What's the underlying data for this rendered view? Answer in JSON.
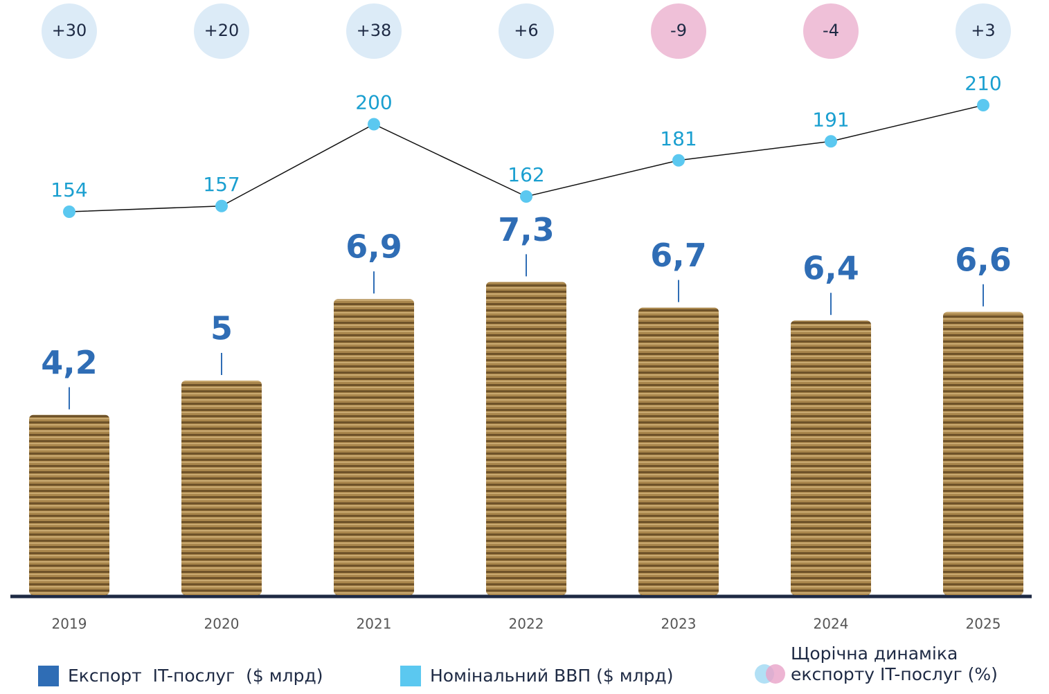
{
  "chart_data": {
    "type": "bar",
    "categories": [
      "2019",
      "2020",
      "2021",
      "2022",
      "2023",
      "2024",
      "2025"
    ],
    "series": [
      {
        "name": "Експорт  IT-послуг  ($ млрд)",
        "type": "bar",
        "color": "#2f6db5",
        "values": [
          4.2,
          5,
          6.9,
          7.3,
          6.7,
          6.4,
          6.6
        ],
        "value_labels": [
          "4,2",
          "5",
          "6,9",
          "7,3",
          "6,7",
          "6,4",
          "6,6"
        ]
      },
      {
        "name": "Номінальний ВВП ($ млрд)",
        "type": "line",
        "color": "#5bc8f0",
        "values": [
          154,
          157,
          200,
          162,
          181,
          191,
          210
        ]
      },
      {
        "name": "Щорічна динаміка експорту IT-послуг (%)",
        "type": "bubble",
        "color": "#dcebf7",
        "negative_color": "#efc0d8",
        "values": [
          30,
          20,
          38,
          6,
          -9,
          -4,
          3
        ],
        "value_labels": [
          "+30",
          "+20",
          "+38",
          "+6",
          "-9",
          "-4",
          "+3"
        ]
      }
    ]
  }
}
